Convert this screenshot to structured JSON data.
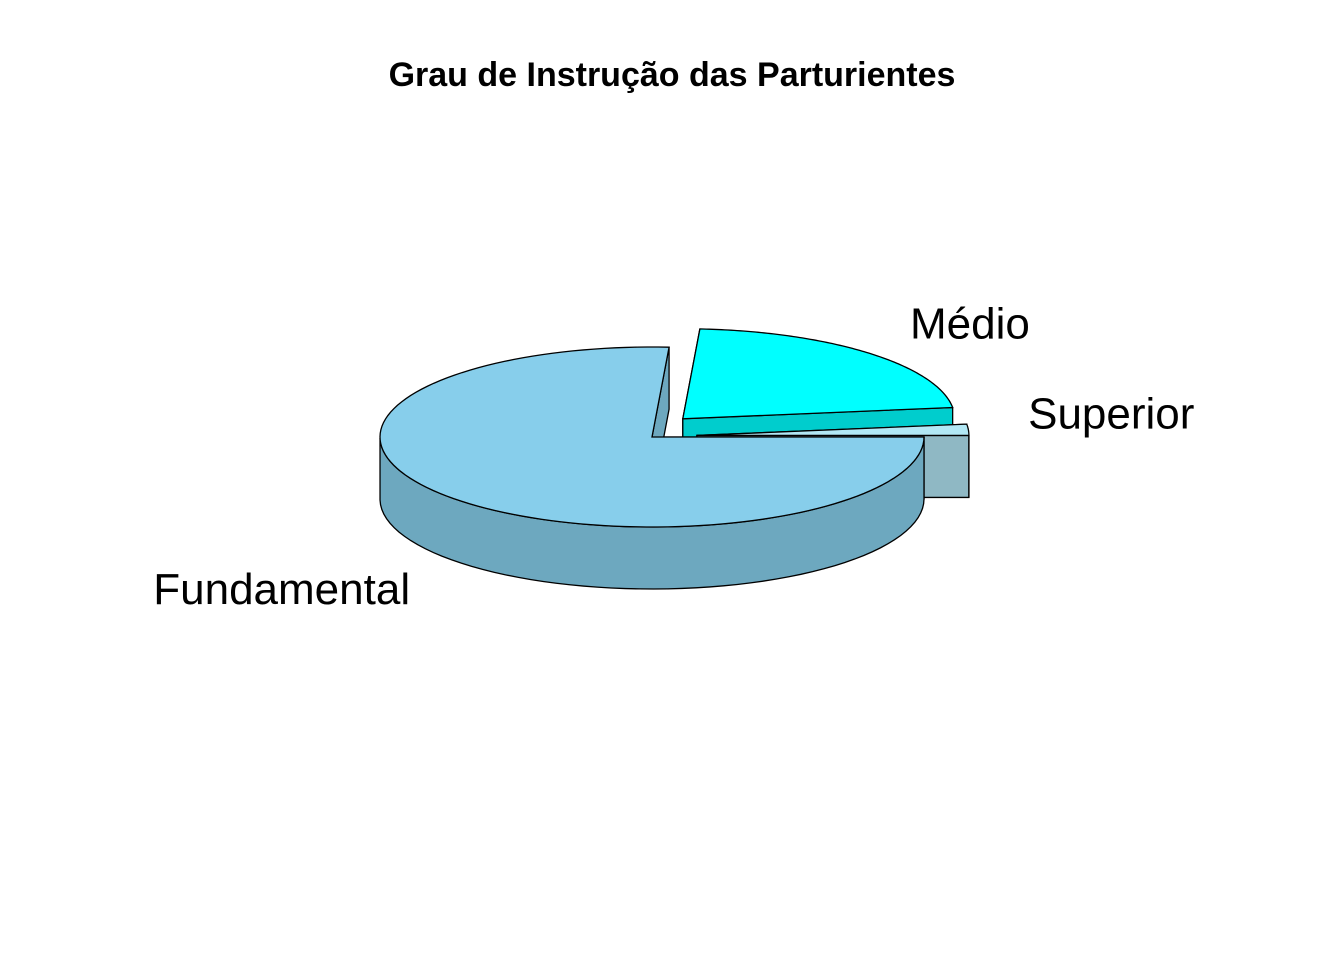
{
  "chart_data": {
    "type": "pie",
    "title": "Grau de Instrução das Parturientes",
    "categories": [
      "Fundamental",
      "Médio",
      "Superior"
    ],
    "values": [
      76,
      22,
      2
    ],
    "explode": [
      0,
      1,
      1
    ],
    "colors": {
      "top": [
        "#87ceeb",
        "#00ffff",
        "#b2e8f5"
      ],
      "side": [
        "#6da8bf",
        "#00cdcd",
        "#8fb8c4"
      ],
      "outline": "#000000"
    }
  }
}
